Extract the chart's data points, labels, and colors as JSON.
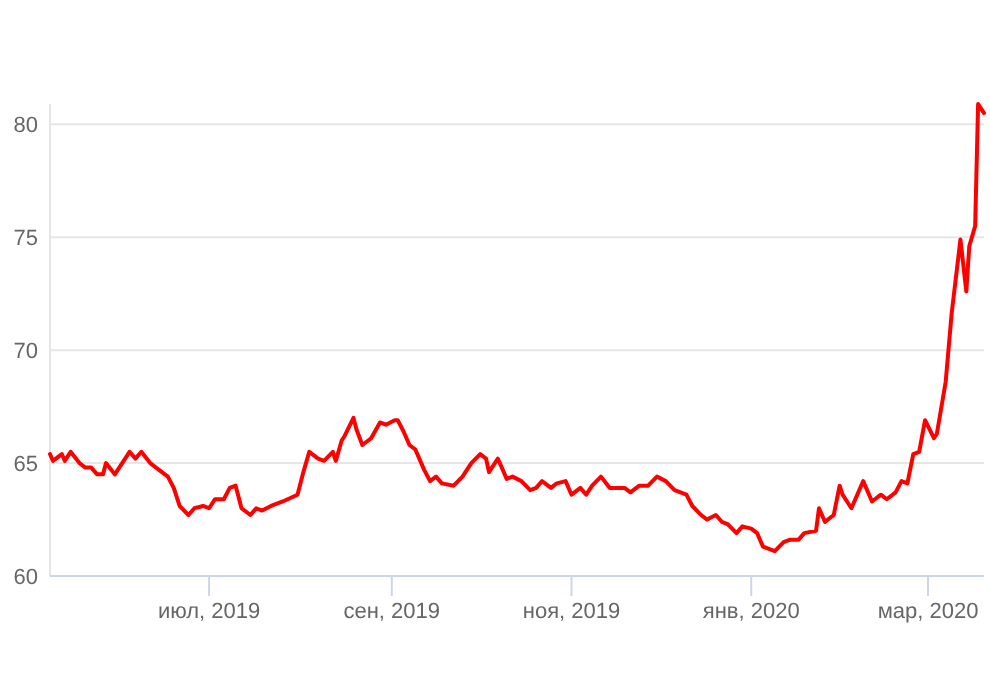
{
  "chart_data": {
    "type": "line",
    "xlim": [
      "2019-05-08",
      "2020-03-20"
    ],
    "xticks": [
      {
        "value": "2019-07-01",
        "label": "июл, 2019"
      },
      {
        "value": "2019-09-01",
        "label": "сен, 2019"
      },
      {
        "value": "2019-11-01",
        "label": "ноя, 2019"
      },
      {
        "value": "2020-01-01",
        "label": "янв, 2020"
      },
      {
        "value": "2020-03-01",
        "label": "мар, 2020"
      }
    ],
    "ylim": [
      60,
      80.9
    ],
    "yticks": [
      60,
      65,
      70,
      75,
      80
    ],
    "grid": "y",
    "marker": "none",
    "line_style": "solid",
    "x": [
      "2019-05-08",
      "2019-05-09",
      "2019-05-12",
      "2019-05-13",
      "2019-05-15",
      "2019-05-18",
      "2019-05-20",
      "2019-05-22",
      "2019-05-24",
      "2019-05-26",
      "2019-05-27",
      "2019-05-30",
      "2019-06-02",
      "2019-06-04",
      "2019-06-06",
      "2019-06-08",
      "2019-06-11",
      "2019-06-14",
      "2019-06-17",
      "2019-06-19",
      "2019-06-21",
      "2019-06-24",
      "2019-06-26",
      "2019-06-29",
      "2019-07-01",
      "2019-07-03",
      "2019-07-06",
      "2019-07-08",
      "2019-07-10",
      "2019-07-12",
      "2019-07-15",
      "2019-07-17",
      "2019-07-19",
      "2019-07-22",
      "2019-07-26",
      "2019-07-31",
      "2019-08-02",
      "2019-08-04",
      "2019-08-07",
      "2019-08-09",
      "2019-08-12",
      "2019-08-13",
      "2019-08-15",
      "2019-08-16",
      "2019-08-19",
      "2019-08-20",
      "2019-08-22",
      "2019-08-25",
      "2019-08-28",
      "2019-08-30",
      "2019-09-02",
      "2019-09-03",
      "2019-09-05",
      "2019-09-07",
      "2019-09-09",
      "2019-09-12",
      "2019-09-14",
      "2019-09-16",
      "2019-09-18",
      "2019-09-22",
      "2019-09-25",
      "2019-09-28",
      "2019-10-01",
      "2019-10-03",
      "2019-10-04",
      "2019-10-07",
      "2019-10-10",
      "2019-10-12",
      "2019-10-15",
      "2019-10-18",
      "2019-10-20",
      "2019-10-22",
      "2019-10-25",
      "2019-10-27",
      "2019-10-30",
      "2019-11-01",
      "2019-11-04",
      "2019-11-06",
      "2019-11-08",
      "2019-11-11",
      "2019-11-14",
      "2019-11-19",
      "2019-11-21",
      "2019-11-24",
      "2019-11-27",
      "2019-11-30",
      "2019-12-03",
      "2019-12-06",
      "2019-12-10",
      "2019-12-12",
      "2019-12-15",
      "2019-12-17",
      "2019-12-20",
      "2019-12-22",
      "2019-12-24",
      "2019-12-27",
      "2019-12-29",
      "2020-01-01",
      "2020-01-03",
      "2020-01-05",
      "2020-01-09",
      "2020-01-12",
      "2020-01-14",
      "2020-01-17",
      "2020-01-19",
      "2020-01-23",
      "2020-01-24",
      "2020-01-26",
      "2020-01-29",
      "2020-01-31",
      "2020-02-01",
      "2020-02-04",
      "2020-02-08",
      "2020-02-11",
      "2020-02-14",
      "2020-02-16",
      "2020-02-19",
      "2020-02-21",
      "2020-02-23",
      "2020-02-25",
      "2020-02-27",
      "2020-02-29",
      "2020-03-03",
      "2020-03-04",
      "2020-03-07",
      "2020-03-09",
      "2020-03-12",
      "2020-03-14",
      "2020-03-15",
      "2020-03-17",
      "2020-03-18",
      "2020-03-20"
    ],
    "series": [
      {
        "color": "#ff0000",
        "values": [
          65.4,
          65.1,
          65.4,
          65.1,
          65.5,
          65.0,
          64.8,
          64.8,
          64.5,
          64.5,
          65.0,
          64.5,
          65.1,
          65.5,
          65.2,
          65.5,
          65.0,
          64.7,
          64.4,
          63.9,
          63.1,
          62.7,
          63.0,
          63.1,
          63.0,
          63.4,
          63.4,
          63.9,
          64.0,
          63.0,
          62.7,
          63.0,
          62.9,
          63.1,
          63.3,
          63.6,
          64.6,
          65.5,
          65.2,
          65.1,
          65.5,
          65.1,
          66.0,
          66.2,
          67.0,
          66.5,
          65.8,
          66.1,
          66.8,
          66.7,
          66.9,
          66.9,
          66.4,
          65.8,
          65.6,
          64.7,
          64.2,
          64.4,
          64.1,
          64.0,
          64.4,
          65.0,
          65.4,
          65.2,
          64.6,
          65.2,
          64.3,
          64.4,
          64.2,
          63.8,
          63.9,
          64.2,
          63.9,
          64.1,
          64.2,
          63.6,
          63.9,
          63.6,
          64.0,
          64.4,
          63.9,
          63.9,
          63.7,
          64.0,
          64.0,
          64.4,
          64.2,
          63.8,
          63.6,
          63.1,
          62.7,
          62.5,
          62.7,
          62.4,
          62.3,
          61.9,
          62.2,
          62.1,
          61.9,
          61.3,
          61.1,
          61.5,
          61.6,
          61.6,
          61.9,
          62.0,
          63.0,
          62.4,
          62.7,
          64.0,
          63.6,
          63.0,
          64.2,
          63.3,
          63.6,
          63.4,
          63.7,
          64.2,
          64.1,
          65.4,
          65.5,
          66.9,
          66.1,
          66.3,
          68.6,
          71.6,
          74.9,
          72.6,
          74.6,
          75.5,
          80.9,
          80.5
        ]
      }
    ]
  }
}
